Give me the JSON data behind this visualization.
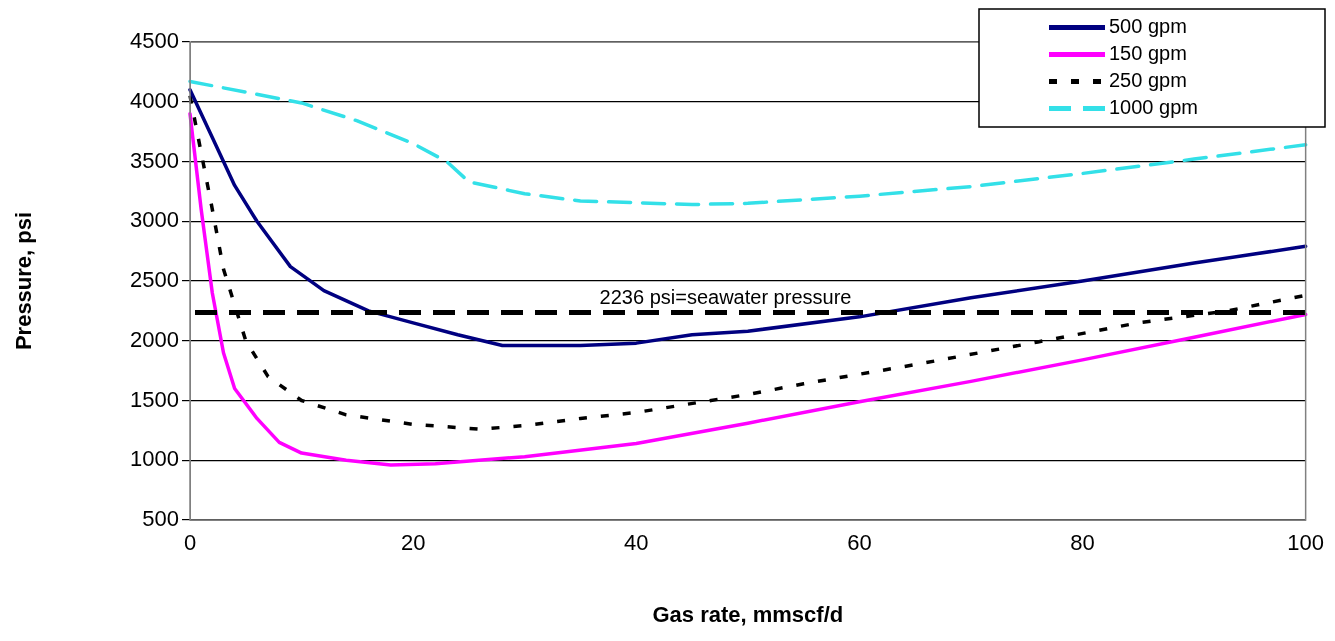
{
  "chart_data": {
    "type": "line",
    "xlabel": "Gas rate, mmscf/d",
    "ylabel": "Pressure, psi",
    "xlim": [
      0,
      100
    ],
    "xticks": [
      0,
      20,
      40,
      60,
      80,
      100
    ],
    "ylim": [
      500,
      4500
    ],
    "yticks": [
      500,
      1000,
      1500,
      2000,
      2500,
      3000,
      3500,
      4000,
      4500
    ],
    "grid": "y",
    "legend": "top right",
    "marker": "none",
    "series": [
      {
        "name": "500 gpm",
        "color": "#000080",
        "line_style": "solid",
        "x": [
          0,
          2,
          4,
          6,
          9,
          12,
          16,
          20,
          24,
          28,
          35,
          40,
          45,
          50,
          60,
          70,
          80,
          90,
          100
        ],
        "values": [
          4100,
          3700,
          3300,
          3000,
          2620,
          2420,
          2250,
          2150,
          2050,
          1960,
          1960,
          1980,
          2050,
          2080,
          2200,
          2360,
          2500,
          2650,
          2790
        ]
      },
      {
        "name": "150 gpm",
        "color": "#ff00ff",
        "line_style": "solid",
        "x": [
          0,
          1,
          2,
          3,
          4,
          6,
          8,
          10,
          14,
          18,
          22,
          30,
          40,
          50,
          60,
          70,
          80,
          90,
          100
        ],
        "values": [
          3900,
          3100,
          2400,
          1900,
          1600,
          1350,
          1150,
          1060,
          1000,
          960,
          970,
          1030,
          1140,
          1310,
          1490,
          1660,
          1840,
          2030,
          2220
        ]
      },
      {
        "name": "250 gpm",
        "color": "#000000",
        "line_style": "dotted",
        "x": [
          0,
          2,
          3,
          5,
          7,
          10,
          14,
          20,
          26,
          30,
          35,
          40,
          50,
          55,
          65,
          76,
          85,
          93,
          100
        ],
        "values": [
          4050,
          3100,
          2600,
          2000,
          1700,
          1500,
          1380,
          1300,
          1260,
          1290,
          1350,
          1400,
          1550,
          1640,
          1800,
          1990,
          2150,
          2250,
          2380
        ]
      },
      {
        "name": "1000 gpm",
        "color": "#33e0e8",
        "line_style": "dashed",
        "x": [
          0,
          5,
          10,
          15,
          20,
          23,
          25,
          30,
          35,
          45,
          50,
          60,
          70,
          80,
          90,
          100
        ],
        "values": [
          4170,
          4080,
          3990,
          3840,
          3650,
          3500,
          3330,
          3230,
          3170,
          3140,
          3150,
          3210,
          3290,
          3400,
          3520,
          3640
        ]
      }
    ],
    "ref_lines": [
      {
        "axis": "y",
        "value": 2236,
        "label": "2236 psi=seawater pressure",
        "color": "#000000",
        "line_style": "dashed"
      }
    ]
  }
}
